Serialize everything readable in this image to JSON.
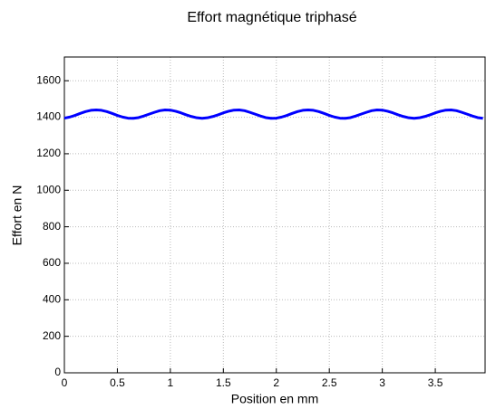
{
  "chart_data": {
    "type": "line",
    "title": "Effort magnétique triphasé",
    "xlabel": "Position en mm",
    "ylabel": "Effort en N",
    "x": [
      0,
      0.05,
      0.1,
      0.15,
      0.2,
      0.25,
      0.3,
      0.35,
      0.4,
      0.45,
      0.5,
      0.55,
      0.6,
      0.65,
      0.7,
      0.75,
      0.8,
      0.85,
      0.9,
      0.95,
      1,
      1.05,
      1.1,
      1.15,
      1.2,
      1.25,
      1.3,
      1.35,
      1.4,
      1.45,
      1.5,
      1.55,
      1.6,
      1.65,
      1.7,
      1.75,
      1.8,
      1.85,
      1.9,
      1.95,
      2,
      2.05,
      2.1,
      2.15,
      2.2,
      2.25,
      2.3,
      2.35,
      2.4,
      2.45,
      2.5,
      2.55,
      2.6,
      2.65,
      2.7,
      2.75,
      2.8,
      2.85,
      2.9,
      2.95,
      3,
      3.05,
      3.1,
      3.15,
      3.2,
      3.25,
      3.3,
      3.35,
      3.4,
      3.45,
      3.5,
      3.55,
      3.6,
      3.65,
      3.7,
      3.75,
      3.8,
      3.85,
      3.9,
      3.95
    ],
    "series": [
      {
        "name": "Effort",
        "color": "#0000ff",
        "values": [
          1395,
          1401,
          1410,
          1421,
          1431,
          1438,
          1440,
          1438,
          1431,
          1421,
          1410,
          1401,
          1395,
          1394,
          1398,
          1407,
          1417,
          1427,
          1436,
          1440,
          1439,
          1433,
          1424,
          1413,
          1404,
          1397,
          1394,
          1397,
          1404,
          1413,
          1424,
          1433,
          1439,
          1440,
          1436,
          1427,
          1417,
          1407,
          1398,
          1394,
          1395,
          1401,
          1410,
          1421,
          1431,
          1438,
          1440,
          1438,
          1431,
          1421,
          1410,
          1401,
          1395,
          1394,
          1398,
          1407,
          1417,
          1427,
          1436,
          1440,
          1439,
          1433,
          1424,
          1413,
          1404,
          1397,
          1394,
          1397,
          1404,
          1413,
          1424,
          1433,
          1439,
          1440,
          1436,
          1427,
          1417,
          1407,
          1398,
          1394
        ]
      }
    ],
    "xlim": [
      0,
      3.97
    ],
    "xticks": [
      0,
      0.5,
      1,
      1.5,
      2,
      2.5,
      3,
      3.5
    ],
    "ylim": [
      0,
      1730
    ],
    "yticks": [
      0,
      200,
      400,
      600,
      800,
      1000,
      1200,
      1400,
      1600
    ],
    "grid": true
  }
}
